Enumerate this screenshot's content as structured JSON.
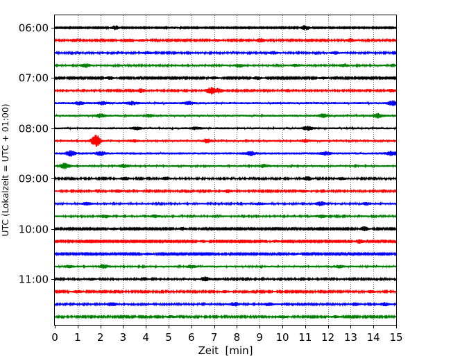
{
  "chart_data": {
    "type": "line",
    "title": "",
    "xlabel": "Zeit  [min]",
    "ylabel": "UTC (Lokalzeit = UTC + 01:00)",
    "xlim": [
      0,
      15
    ],
    "x_ticks": [
      0,
      1,
      2,
      3,
      4,
      5,
      6,
      7,
      8,
      9,
      10,
      11,
      12,
      13,
      14,
      15
    ],
    "x_tick_labels": [
      "0",
      "1",
      "2",
      "3",
      "4",
      "5",
      "6",
      "7",
      "8",
      "9",
      "10",
      "11",
      "12",
      "13",
      "14",
      "15"
    ],
    "y_ticks": [
      {
        "label": "06:00",
        "row": 0
      },
      {
        "label": "07:00",
        "row": 4
      },
      {
        "label": "08:00",
        "row": 8
      },
      {
        "label": "09:00",
        "row": 12
      },
      {
        "label": "10:00",
        "row": 16
      },
      {
        "label": "11:00",
        "row": 20
      }
    ],
    "grid": "vertical dotted",
    "trace_colors": [
      "#000000",
      "#ff0000",
      "#0000ff",
      "#008000"
    ],
    "series": [
      {
        "start": "06:00",
        "color": "#000000",
        "noise": 0.16,
        "events": [
          [
            2.65,
            0.65
          ],
          [
            11.0,
            0.75
          ],
          [
            5.2,
            0.3
          ]
        ]
      },
      {
        "start": "06:15",
        "color": "#ff0000",
        "noise": 0.22,
        "events": [
          [
            9.05,
            0.55
          ],
          [
            13.0,
            0.5
          ],
          [
            7.1,
            0.3
          ],
          [
            3.8,
            0.3
          ]
        ]
      },
      {
        "start": "06:30",
        "color": "#0000ff",
        "noise": 0.24,
        "events": [
          [
            4.1,
            0.4
          ],
          [
            9.6,
            0.4
          ],
          [
            12.3,
            0.35
          ]
        ]
      },
      {
        "start": "06:45",
        "color": "#008000",
        "noise": 0.26,
        "events": [
          [
            1.35,
            0.55
          ],
          [
            8.1,
            0.5
          ],
          [
            12.7,
            0.4
          ],
          [
            10.6,
            0.3
          ]
        ]
      },
      {
        "start": "07:00",
        "color": "#000000",
        "noise": 0.2,
        "events": [
          [
            2.4,
            0.4
          ],
          [
            7.0,
            0.35
          ],
          [
            8.9,
            0.45
          ],
          [
            11.8,
            0.3
          ]
        ]
      },
      {
        "start": "07:15",
        "color": "#ff0000",
        "noise": 0.24,
        "events": [
          [
            6.85,
            1.1
          ],
          [
            3.8,
            0.55
          ],
          [
            7.2,
            0.6
          ],
          [
            14.8,
            0.4
          ]
        ]
      },
      {
        "start": "07:30",
        "color": "#0000ff",
        "noise": 0.32,
        "events": [
          [
            1.1,
            0.4
          ],
          [
            2.1,
            0.35
          ],
          [
            3.4,
            0.45
          ],
          [
            5.9,
            0.45
          ],
          [
            14.85,
            0.7
          ]
        ]
      },
      {
        "start": "07:45",
        "color": "#008000",
        "noise": 0.3,
        "events": [
          [
            2.0,
            0.5
          ],
          [
            4.1,
            0.4
          ],
          [
            11.8,
            0.5
          ],
          [
            14.2,
            0.55
          ]
        ]
      },
      {
        "start": "08:00",
        "color": "#000000",
        "noise": 0.3,
        "events": [
          [
            11.1,
            0.6
          ],
          [
            3.6,
            0.35
          ],
          [
            6.2,
            0.3
          ]
        ]
      },
      {
        "start": "08:15",
        "color": "#ff0000",
        "noise": 0.28,
        "events": [
          [
            1.8,
            1.9
          ],
          [
            6.7,
            0.6
          ],
          [
            3.5,
            0.3
          ],
          [
            11.0,
            0.35
          ]
        ]
      },
      {
        "start": "08:30",
        "color": "#0000ff",
        "noise": 0.34,
        "events": [
          [
            0.7,
            0.7
          ],
          [
            2.0,
            0.5
          ],
          [
            8.6,
            0.55
          ],
          [
            14.8,
            0.55
          ],
          [
            11.9,
            0.4
          ]
        ]
      },
      {
        "start": "08:45",
        "color": "#008000",
        "noise": 0.28,
        "events": [
          [
            0.45,
            0.85
          ],
          [
            3.05,
            0.4
          ],
          [
            9.2,
            0.4
          ]
        ]
      },
      {
        "start": "09:00",
        "color": "#000000",
        "noise": 0.24,
        "events": [
          [
            3.1,
            0.35
          ],
          [
            4.9,
            0.4
          ],
          [
            11.1,
            0.5
          ],
          [
            12.6,
            0.3
          ]
        ]
      },
      {
        "start": "09:15",
        "color": "#ff0000",
        "noise": 0.24,
        "events": [
          [
            2.8,
            0.35
          ],
          [
            7.6,
            0.4
          ],
          [
            10.9,
            0.3
          ]
        ]
      },
      {
        "start": "09:30",
        "color": "#0000ff",
        "noise": 0.26,
        "events": [
          [
            1.4,
            0.35
          ],
          [
            11.7,
            0.55
          ],
          [
            13.7,
            0.35
          ],
          [
            9.0,
            0.3
          ]
        ]
      },
      {
        "start": "09:45",
        "color": "#008000",
        "noise": 0.26,
        "events": [
          [
            2.2,
            0.4
          ],
          [
            4.4,
            0.35
          ],
          [
            11.7,
            0.4
          ]
        ]
      },
      {
        "start": "10:00",
        "color": "#000000",
        "noise": 0.2,
        "events": [
          [
            5.6,
            0.4
          ],
          [
            13.6,
            0.6
          ],
          [
            2.6,
            0.3
          ]
        ]
      },
      {
        "start": "10:15",
        "color": "#ff0000",
        "noise": 0.2,
        "events": [
          [
            13.4,
            0.55
          ],
          [
            6.5,
            0.3
          ],
          [
            9.7,
            0.3
          ]
        ]
      },
      {
        "start": "10:30",
        "color": "#0000ff",
        "noise": 0.2,
        "events": [
          [
            4.1,
            0.3
          ],
          [
            10.5,
            0.3
          ]
        ]
      },
      {
        "start": "10:45",
        "color": "#008000",
        "noise": 0.28,
        "events": [
          [
            2.15,
            0.55
          ],
          [
            6.0,
            0.35
          ],
          [
            12.5,
            0.35
          ],
          [
            0.6,
            0.3
          ]
        ]
      },
      {
        "start": "11:00",
        "color": "#000000",
        "noise": 0.24,
        "events": [
          [
            6.6,
            0.6
          ],
          [
            3.9,
            0.4
          ],
          [
            1.6,
            0.35
          ],
          [
            7.1,
            0.3
          ]
        ]
      },
      {
        "start": "11:15",
        "color": "#ff0000",
        "noise": 0.22,
        "events": [
          [
            1.0,
            0.35
          ],
          [
            7.5,
            0.3
          ],
          [
            13.9,
            0.35
          ]
        ]
      },
      {
        "start": "11:30",
        "color": "#0000ff",
        "noise": 0.24,
        "events": [
          [
            2.5,
            0.55
          ],
          [
            7.9,
            0.55
          ],
          [
            9.4,
            0.4
          ],
          [
            13.2,
            0.4
          ],
          [
            14.5,
            0.45
          ]
        ]
      },
      {
        "start": "11:45",
        "color": "#008000",
        "noise": 0.22,
        "events": [
          [
            10.0,
            0.4
          ],
          [
            5.1,
            0.3
          ],
          [
            12.3,
            0.3
          ]
        ]
      }
    ]
  }
}
